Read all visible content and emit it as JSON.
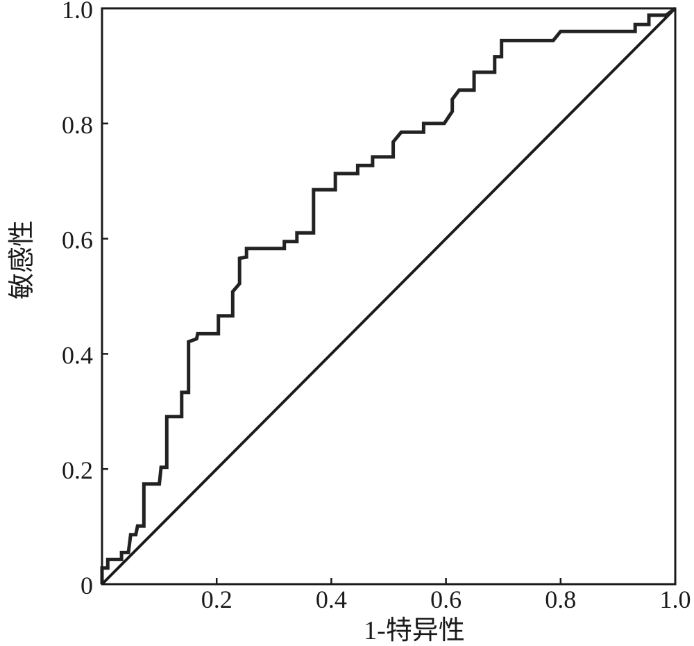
{
  "chart_data": {
    "type": "line",
    "xlabel": "1-特异性",
    "ylabel": "敏感性",
    "xlim": [
      0,
      1
    ],
    "ylim": [
      0,
      1
    ],
    "x_ticks": [
      "0.2",
      "0.4",
      "0.6",
      "0.8",
      "1.0"
    ],
    "y_ticks": [
      "0",
      "0.2",
      "0.4",
      "0.6",
      "0.8",
      "1.0"
    ],
    "grid": false,
    "series": [
      {
        "color": "#222222",
        "points": [
          [
            0,
            0
          ],
          [
            0,
            0.028
          ],
          [
            0.01,
            0.028
          ],
          [
            0.01,
            0.043
          ],
          [
            0.034,
            0.043
          ],
          [
            0.034,
            0.055
          ],
          [
            0.046,
            0.055
          ],
          [
            0.05,
            0.086
          ],
          [
            0.059,
            0.086
          ],
          [
            0.062,
            0.101
          ],
          [
            0.073,
            0.101
          ],
          [
            0.073,
            0.174
          ],
          [
            0.1,
            0.174
          ],
          [
            0.103,
            0.203
          ],
          [
            0.113,
            0.203
          ],
          [
            0.113,
            0.291
          ],
          [
            0.139,
            0.291
          ],
          [
            0.139,
            0.333
          ],
          [
            0.151,
            0.333
          ],
          [
            0.151,
            0.421
          ],
          [
            0.165,
            0.426
          ],
          [
            0.167,
            0.435
          ],
          [
            0.203,
            0.435
          ],
          [
            0.203,
            0.466
          ],
          [
            0.228,
            0.466
          ],
          [
            0.228,
            0.508
          ],
          [
            0.24,
            0.522
          ],
          [
            0.24,
            0.566
          ],
          [
            0.252,
            0.568
          ],
          [
            0.252,
            0.583
          ],
          [
            0.318,
            0.583
          ],
          [
            0.318,
            0.595
          ],
          [
            0.34,
            0.595
          ],
          [
            0.34,
            0.61
          ],
          [
            0.369,
            0.61
          ],
          [
            0.369,
            0.685
          ],
          [
            0.407,
            0.685
          ],
          [
            0.407,
            0.713
          ],
          [
            0.446,
            0.713
          ],
          [
            0.446,
            0.727
          ],
          [
            0.472,
            0.727
          ],
          [
            0.472,
            0.742
          ],
          [
            0.508,
            0.742
          ],
          [
            0.508,
            0.768
          ],
          [
            0.522,
            0.785
          ],
          [
            0.561,
            0.785
          ],
          [
            0.561,
            0.8
          ],
          [
            0.597,
            0.8
          ],
          [
            0.611,
            0.821
          ],
          [
            0.611,
            0.842
          ],
          [
            0.623,
            0.858
          ],
          [
            0.649,
            0.858
          ],
          [
            0.649,
            0.889
          ],
          [
            0.685,
            0.889
          ],
          [
            0.685,
            0.916
          ],
          [
            0.697,
            0.916
          ],
          [
            0.697,
            0.944
          ],
          [
            0.787,
            0.944
          ],
          [
            0.8,
            0.96
          ],
          [
            0.93,
            0.96
          ],
          [
            0.93,
            0.972
          ],
          [
            0.954,
            0.972
          ],
          [
            0.954,
            0.988
          ],
          [
            0.984,
            0.988
          ],
          [
            1.0,
            1.0
          ]
        ]
      }
    ],
    "reference_line": {
      "color": "#1a1a1a",
      "points": [
        [
          0,
          0
        ],
        [
          1,
          1
        ]
      ]
    }
  }
}
